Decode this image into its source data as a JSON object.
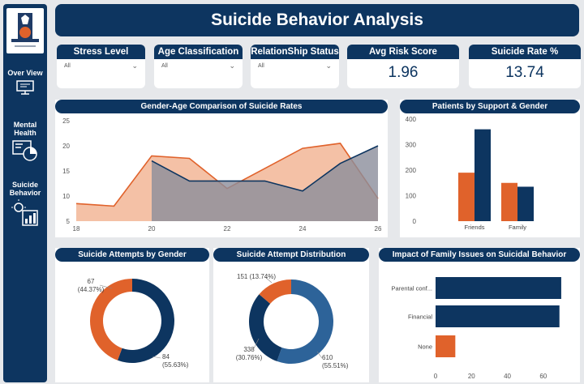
{
  "title": "Suicide Behavior Analysis",
  "sidebar": {
    "items": [
      {
        "label_lines": [
          "Over View"
        ],
        "icon": "monitor-icon"
      },
      {
        "label_lines": [
          "Mental",
          "Health"
        ],
        "icon": "pie-chart-icon"
      },
      {
        "label_lines": [
          "Suicide",
          "Behavior"
        ],
        "icon": "bar-chart-icon"
      }
    ]
  },
  "slicers": [
    {
      "label": "Stress Level",
      "value": "All"
    },
    {
      "label": "Age Classification",
      "value": "All"
    },
    {
      "label": "RelationShip Status",
      "value": "All"
    }
  ],
  "kpis": [
    {
      "label": "Avg Risk Score",
      "value": "1.96"
    },
    {
      "label": "Suicide Rate %",
      "value": "13.74"
    }
  ],
  "colors": {
    "navy": "#0d3560",
    "orange": "#e0622b",
    "blue": "#2d6399",
    "peach": "#f2b697",
    "gray": "#8b8d9b"
  },
  "chart_data": [
    {
      "type": "area",
      "title": "Gender-Age Comparison of Suicide Rates",
      "x": [
        18,
        19,
        20,
        21,
        22,
        23,
        24,
        25,
        26
      ],
      "x_ticks": [
        "18",
        "20",
        "22",
        "24",
        "26"
      ],
      "y_ticks": [
        "5",
        "10",
        "15",
        "20",
        "25"
      ],
      "ylim": [
        5,
        25
      ],
      "series": [
        {
          "values": [
            8.5,
            8,
            18,
            17.5,
            11.5,
            15.5,
            19.5,
            20.5,
            9.5
          ],
          "color": "#e0622b"
        },
        {
          "values": [
            null,
            null,
            17,
            13,
            13,
            13,
            11,
            16.5,
            20
          ],
          "color": "#0d3560"
        }
      ]
    },
    {
      "type": "bar",
      "title": "Patients by Support & Gender",
      "categories": [
        "Friends",
        "Family"
      ],
      "y_ticks": [
        "0",
        "100",
        "200",
        "300",
        "400"
      ],
      "ylim": [
        0,
        400
      ],
      "series": [
        {
          "values": [
            190,
            150
          ],
          "color": "#e0622b"
        },
        {
          "values": [
            360,
            135
          ],
          "color": "#0d3560"
        }
      ]
    },
    {
      "type": "pie",
      "title": "Suicide Attempts by Gender",
      "slices": [
        {
          "value": 84,
          "label": "84",
          "pct": "(55.63%)",
          "color": "#0d3560"
        },
        {
          "value": 67,
          "label": "67",
          "pct": "(44.37%)",
          "color": "#e0622b"
        }
      ]
    },
    {
      "type": "pie",
      "title": "Suicide Attempt Distribution",
      "slices": [
        {
          "value": 610,
          "label": "610",
          "pct": "(55.51%)",
          "color": "#2d6399"
        },
        {
          "value": 338,
          "label": "338",
          "pct": "(30.76%)",
          "color": "#0d3560"
        },
        {
          "value": 151,
          "label": "151 (13.74%)",
          "pct": "",
          "color": "#e0622b"
        }
      ]
    },
    {
      "type": "bar",
      "orientation": "horizontal",
      "title": "Impact of Family Issues on Suicidal Behavior",
      "categories": [
        "Parental conf...",
        "Financial",
        "None"
      ],
      "values": [
        70,
        69,
        11
      ],
      "colors": [
        "#0d3560",
        "#0d3560",
        "#e0622b"
      ],
      "x_ticks": [
        "0",
        "20",
        "40",
        "60"
      ],
      "xlim": [
        0,
        75
      ]
    }
  ]
}
